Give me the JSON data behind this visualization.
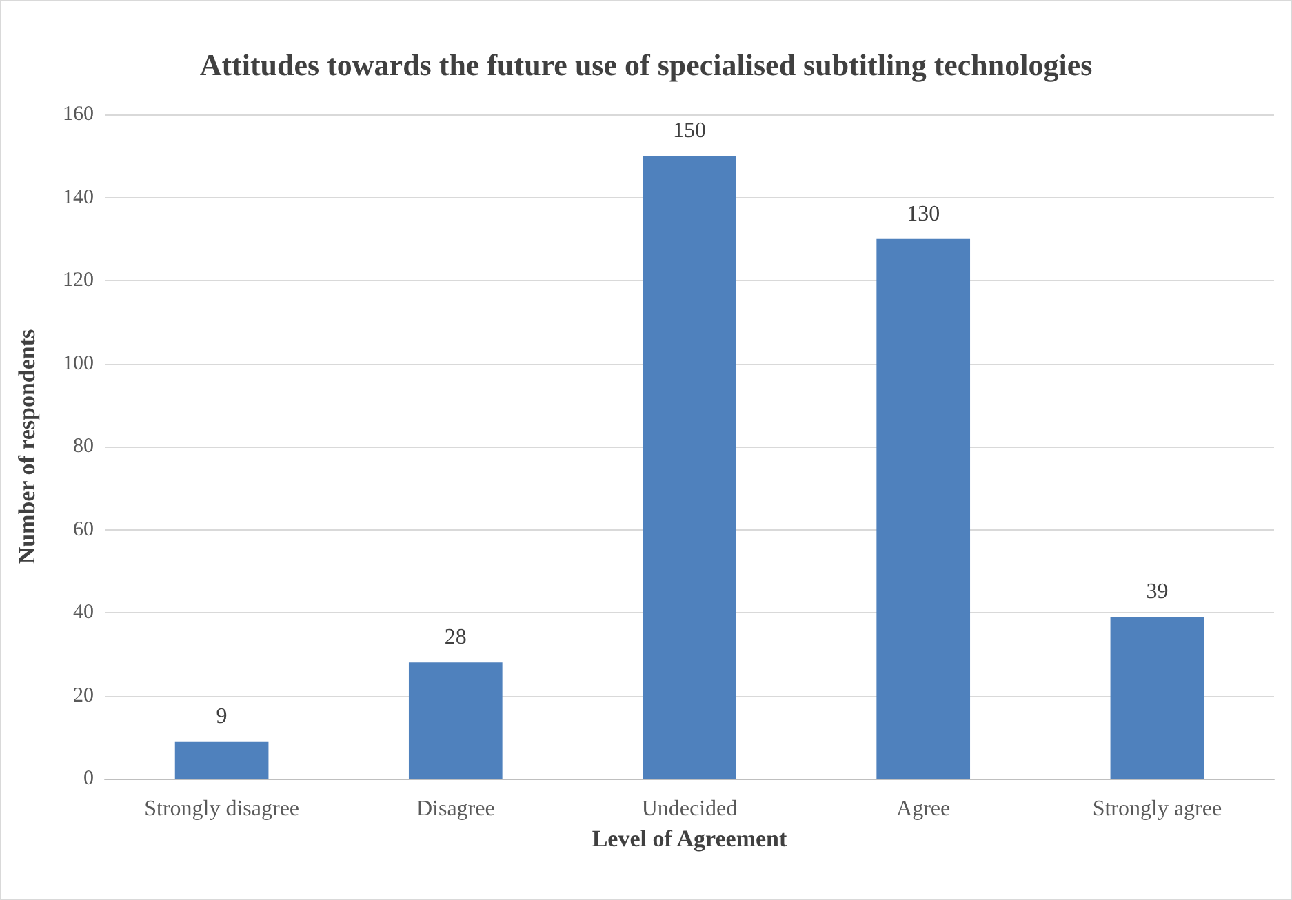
{
  "chart_data": {
    "type": "bar",
    "title": "Attitudes towards the future use of specialised subtitling technologies",
    "xlabel": "Level of Agreement",
    "ylabel": "Number of respondents",
    "categories": [
      "Strongly disagree",
      "Disagree",
      "Undecided",
      "Agree",
      "Strongly agree"
    ],
    "values": [
      9,
      28,
      150,
      130,
      39
    ],
    "color": "#4f81bd",
    "ylim": [
      0,
      160
    ],
    "yticks": [
      0,
      20,
      40,
      60,
      80,
      100,
      120,
      140,
      160
    ],
    "grid": "y",
    "data_labels": true
  }
}
